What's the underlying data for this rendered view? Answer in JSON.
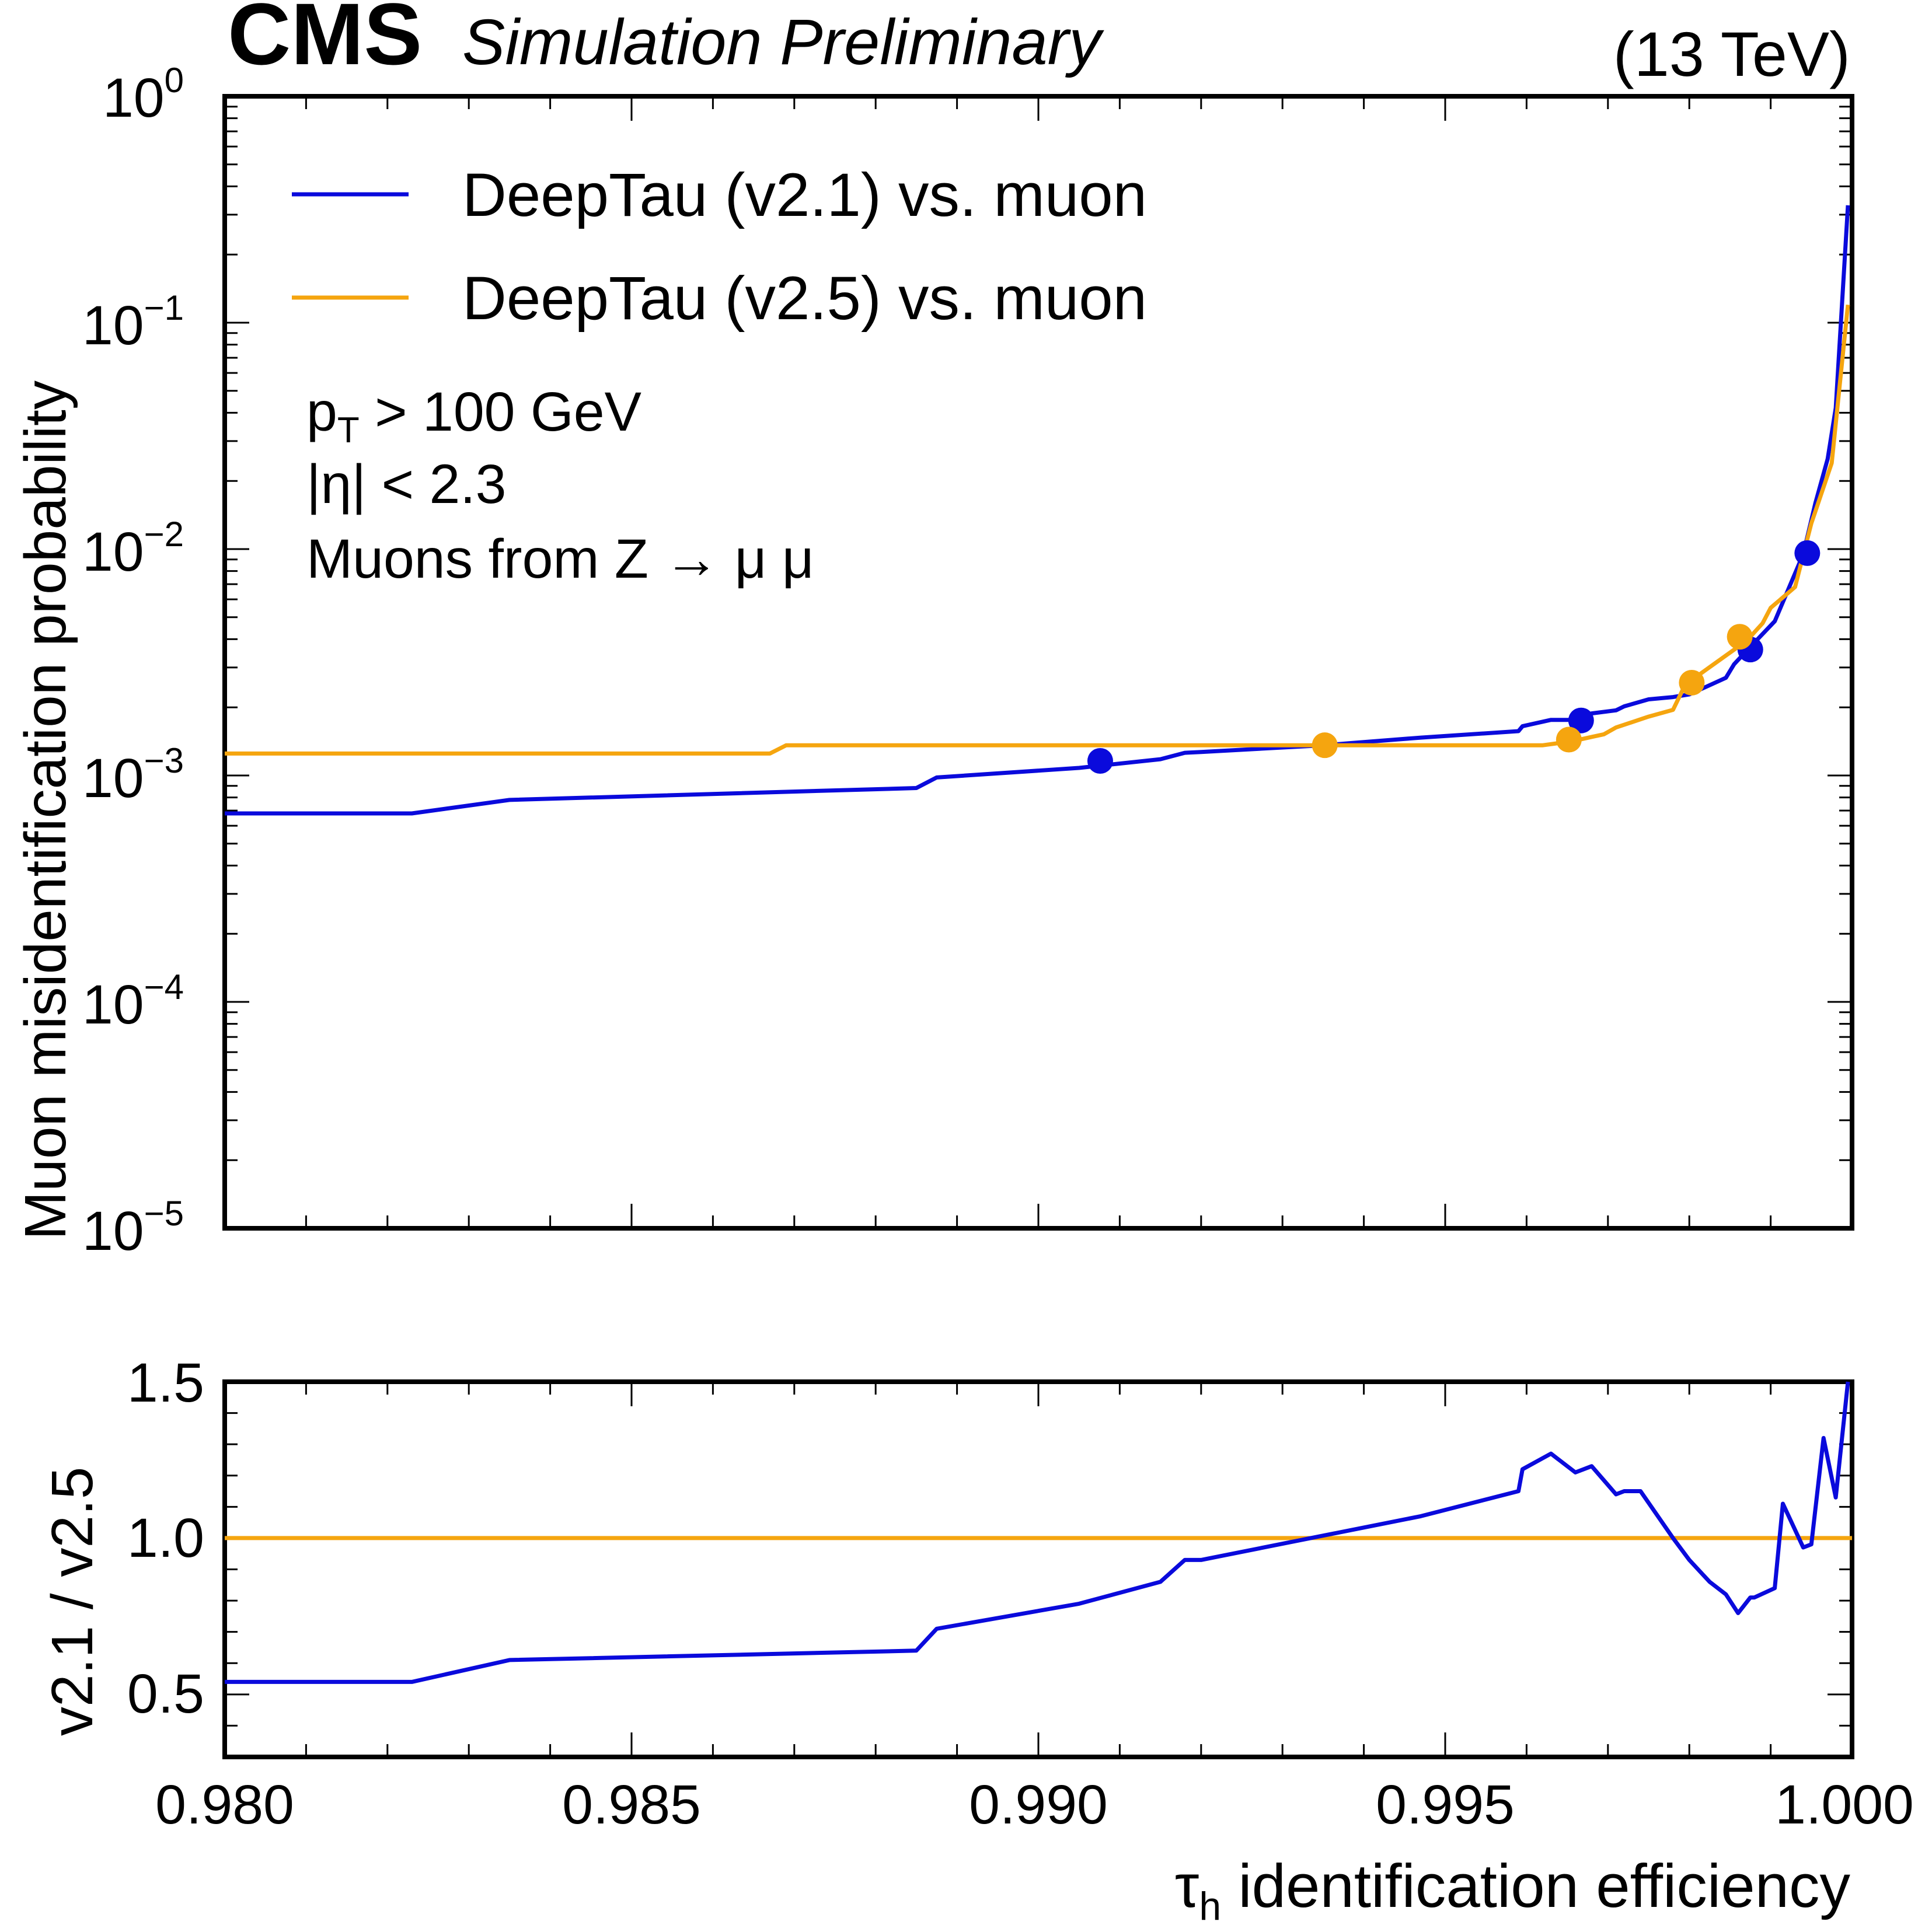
{
  "header": {
    "experiment": "CMS",
    "status": "Simulation Preliminary",
    "energy": "(13 TeV)"
  },
  "annotations": {
    "pt_prefix": "p",
    "pt_sub": "T",
    "pt_suffix": " > 100 GeV",
    "eta_cut": "|η| < 2.3",
    "sample": "Muons from Z → μ μ"
  },
  "colors": {
    "v21": "#0a0adc",
    "v25": "#f5a50f"
  },
  "chart_data": [
    {
      "type": "line",
      "panel": "main",
      "ylabel": "Muon misidentification probability",
      "yscale": "log",
      "xlim": [
        0.98,
        1.0
      ],
      "ylim": [
        1e-05,
        1
      ],
      "y_tick_labels": [
        {
          "base": "10",
          "exp": "0"
        },
        {
          "base": "10",
          "exp": "−1"
        },
        {
          "base": "10",
          "exp": "−2"
        },
        {
          "base": "10",
          "exp": "−3"
        },
        {
          "base": "10",
          "exp": "−4"
        },
        {
          "base": "10",
          "exp": "−5"
        }
      ],
      "legend": {
        "location": "upper left"
      },
      "series": [
        {
          "name": "DeepTau (v2.1) vs. muon",
          "color": "#0a0adc",
          "x": [
            0.98,
            0.9823,
            0.9835,
            0.9885,
            0.98875,
            0.9905,
            0.9915,
            0.9918,
            0.992,
            0.9935,
            0.9947,
            0.9959,
            0.99595,
            0.9963,
            0.9966,
            0.9968,
            0.9971,
            0.9972,
            0.9975,
            0.9978,
            0.998,
            0.99845,
            0.99855,
            0.99875,
            0.99905,
            0.9994,
            0.99955,
            0.9997,
            0.9998,
            0.99995
          ],
          "y": [
            0.00068,
            0.00068,
            0.00078,
            0.00088,
            0.00098,
            0.00108,
            0.00118,
            0.00126,
            0.00127,
            0.00136,
            0.00147,
            0.00157,
            0.00165,
            0.00176,
            0.00176,
            0.00188,
            0.00194,
            0.00202,
            0.00217,
            0.00222,
            0.00228,
            0.0027,
            0.0031,
            0.0037,
            0.0048,
            0.0095,
            0.016,
            0.025,
            0.042,
            0.33
          ],
          "markers": [
            {
              "x": 0.99076,
              "y": 0.00116
            },
            {
              "x": 0.99667,
              "y": 0.00175
            },
            {
              "x": 0.99875,
              "y": 0.0036
            },
            {
              "x": 0.99945,
              "y": 0.0096
            }
          ]
        },
        {
          "name": "DeepTau (v2.5) vs. muon",
          "color": "#f5a50f",
          "x": [
            0.98,
            0.9867,
            0.9869,
            0.9935,
            0.9962,
            0.99652,
            0.99665,
            0.9968,
            0.99695,
            0.9971,
            0.9975,
            0.9978,
            0.99795,
            0.9983,
            0.9986,
            0.99875,
            0.9989,
            0.999,
            0.9993,
            0.9995,
            0.99975,
            0.99995
          ],
          "y": [
            0.00125,
            0.00125,
            0.00136,
            0.00136,
            0.00136,
            0.00141,
            0.00144,
            0.00148,
            0.00152,
            0.00163,
            0.00182,
            0.00195,
            0.00252,
            0.0031,
            0.0037,
            0.0041,
            0.0047,
            0.0055,
            0.0068,
            0.013,
            0.024,
            0.12
          ],
          "markers": [
            {
              "x": 0.99352,
              "y": 0.00136
            },
            {
              "x": 0.99652,
              "y": 0.00144
            },
            {
              "x": 0.99803,
              "y": 0.00257
            },
            {
              "x": 0.99862,
              "y": 0.0041
            }
          ]
        }
      ]
    },
    {
      "type": "line",
      "panel": "ratio",
      "xlabel": "τh identification efficiency",
      "ylabel": "v2.1 / v2.5",
      "xlim": [
        0.98,
        1.0
      ],
      "ylim": [
        0.3,
        1.5
      ],
      "x_ticks": [
        "0.980",
        "0.985",
        "0.990",
        "0.995",
        "1.000"
      ],
      "y_ticks": [
        "0.5",
        "1.0",
        "1.5"
      ],
      "series": [
        {
          "name": "v2.1",
          "color": "#0a0adc",
          "x": [
            0.98,
            0.9823,
            0.9835,
            0.9885,
            0.98875,
            0.9905,
            0.9915,
            0.9918,
            0.992,
            0.9947,
            0.9959,
            0.99595,
            0.9963,
            0.9966,
            0.9968,
            0.9971,
            0.9972,
            0.9974,
            0.9978,
            0.998,
            0.99825,
            0.99845,
            0.9986,
            0.99875,
            0.9988,
            0.99905,
            0.99915,
            0.9994,
            0.9995,
            0.99965,
            0.9998,
            0.99995
          ],
          "y": [
            0.54,
            0.54,
            0.61,
            0.64,
            0.71,
            0.79,
            0.86,
            0.93,
            0.93,
            1.07,
            1.15,
            1.22,
            1.27,
            1.21,
            1.23,
            1.14,
            1.15,
            1.15,
            1.0,
            0.93,
            0.86,
            0.82,
            0.76,
            0.81,
            0.81,
            0.84,
            1.11,
            0.97,
            0.98,
            1.32,
            1.13,
            1.5
          ]
        },
        {
          "name": "v2.5",
          "color": "#f5a50f",
          "x": [
            0.98,
            1.0
          ],
          "y": [
            1.0,
            1.0
          ]
        }
      ]
    }
  ]
}
